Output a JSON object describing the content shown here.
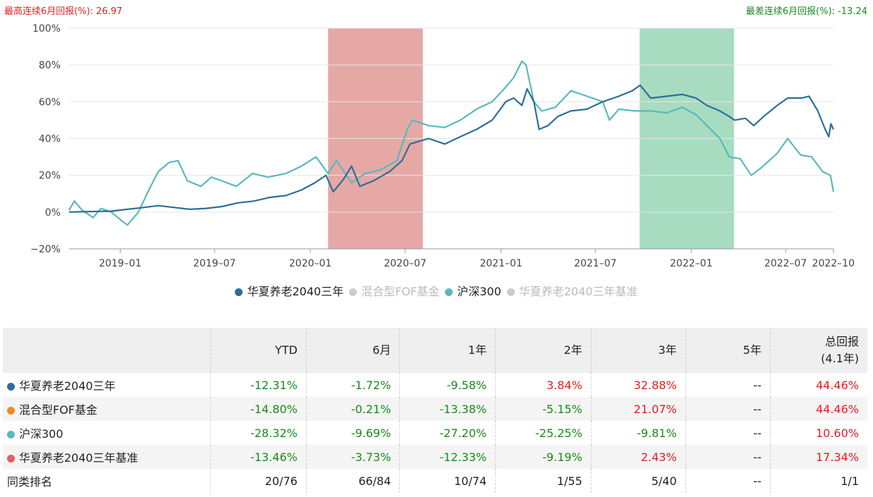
{
  "header": {
    "best_label": "最高连续6月回报(%):",
    "best_value": "26.97",
    "worst_label": "最差连续6月回报(%):",
    "worst_value": "-13.24"
  },
  "chart_data": {
    "type": "line",
    "title": "",
    "xlabel": "",
    "ylabel": "",
    "ylim": [
      -20,
      100
    ],
    "yticks": [
      "100%",
      "80%",
      "60%",
      "40%",
      "20%",
      "0%",
      "−20%"
    ],
    "xticks": [
      "2019–01",
      "2019–07",
      "2020–01",
      "2020–07",
      "2021–01",
      "2021–07",
      "2022–01",
      "2022–07",
      "2022–10"
    ],
    "xtick_dates": [
      "2019-01-01",
      "2019-07-01",
      "2020-01-01",
      "2020-07-01",
      "2021-01-01",
      "2021-07-01",
      "2022-01-01",
      "2022-07-01",
      "2022-10-01"
    ],
    "xrange": [
      "2018-09-25",
      "2022-10-01"
    ],
    "highlights": [
      {
        "kind": "best",
        "start": "2020-02-04",
        "end": "2020-08-04",
        "color": "#e6a8a5"
      },
      {
        "kind": "worst",
        "start": "2021-09-24",
        "end": "2022-03-24",
        "color": "#a8dcc0"
      }
    ],
    "grid": true,
    "legend_position": "bottom",
    "series": [
      {
        "name": "华夏养老2040三年",
        "color": "#2b6f9b",
        "enabled": true,
        "points": [
          [
            "2018-09-25",
            0
          ],
          [
            "2018-11-01",
            0.3
          ],
          [
            "2018-12-15",
            0.5
          ],
          [
            "2019-01-15",
            1.5
          ],
          [
            "2019-02-15",
            2.5
          ],
          [
            "2019-03-15",
            3.5
          ],
          [
            "2019-04-15",
            2.5
          ],
          [
            "2019-05-15",
            1.5
          ],
          [
            "2019-06-15",
            2
          ],
          [
            "2019-07-15",
            3
          ],
          [
            "2019-08-15",
            5
          ],
          [
            "2019-09-15",
            6
          ],
          [
            "2019-10-15",
            8
          ],
          [
            "2019-11-15",
            9
          ],
          [
            "2019-12-15",
            12
          ],
          [
            "2020-01-10",
            16
          ],
          [
            "2020-01-31",
            20
          ],
          [
            "2020-02-14",
            11
          ],
          [
            "2020-03-05",
            18
          ],
          [
            "2020-03-20",
            25
          ],
          [
            "2020-04-05",
            14
          ],
          [
            "2020-05-01",
            17
          ],
          [
            "2020-06-01",
            22
          ],
          [
            "2020-06-25",
            28
          ],
          [
            "2020-07-10",
            37
          ],
          [
            "2020-08-15",
            40
          ],
          [
            "2020-09-15",
            37
          ],
          [
            "2020-10-15",
            41
          ],
          [
            "2020-11-15",
            45
          ],
          [
            "2020-12-15",
            50
          ],
          [
            "2021-01-10",
            60
          ],
          [
            "2021-01-25",
            62
          ],
          [
            "2021-02-10",
            58
          ],
          [
            "2021-02-20",
            67
          ],
          [
            "2021-03-05",
            60
          ],
          [
            "2021-03-15",
            45
          ],
          [
            "2021-04-01",
            47
          ],
          [
            "2021-04-20",
            52
          ],
          [
            "2021-05-15",
            55
          ],
          [
            "2021-06-15",
            56
          ],
          [
            "2021-07-15",
            60
          ],
          [
            "2021-08-15",
            63
          ],
          [
            "2021-09-10",
            66
          ],
          [
            "2021-09-25",
            69
          ],
          [
            "2021-10-15",
            62
          ],
          [
            "2021-11-15",
            63
          ],
          [
            "2021-12-15",
            64
          ],
          [
            "2022-01-10",
            62
          ],
          [
            "2022-01-31",
            58
          ],
          [
            "2022-02-25",
            55
          ],
          [
            "2022-03-15",
            52
          ],
          [
            "2022-03-25",
            50
          ],
          [
            "2022-04-15",
            51
          ],
          [
            "2022-05-01",
            47
          ],
          [
            "2022-05-20",
            52
          ],
          [
            "2022-06-15",
            58
          ],
          [
            "2022-07-05",
            62
          ],
          [
            "2022-08-01",
            62
          ],
          [
            "2022-08-15",
            63
          ],
          [
            "2022-09-01",
            55
          ],
          [
            "2022-09-15",
            45
          ],
          [
            "2022-09-22",
            41
          ],
          [
            "2022-09-26",
            48
          ],
          [
            "2022-10-01",
            45
          ]
        ]
      },
      {
        "name": "混合型FOF基金",
        "color": "#f08a24",
        "enabled": false,
        "points": []
      },
      {
        "name": "沪深300",
        "color": "#5ab8bd",
        "enabled": true,
        "points": [
          [
            "2018-09-25",
            1
          ],
          [
            "2018-10-05",
            6
          ],
          [
            "2018-10-20",
            1
          ],
          [
            "2018-11-10",
            -3
          ],
          [
            "2018-11-25",
            2
          ],
          [
            "2018-12-15",
            0
          ],
          [
            "2019-01-05",
            -5
          ],
          [
            "2019-01-15",
            -7
          ],
          [
            "2019-02-05",
            0
          ],
          [
            "2019-02-25",
            12
          ],
          [
            "2019-03-15",
            22
          ],
          [
            "2019-04-05",
            27
          ],
          [
            "2019-04-22",
            28
          ],
          [
            "2019-05-10",
            17
          ],
          [
            "2019-06-05",
            14
          ],
          [
            "2019-06-25",
            19
          ],
          [
            "2019-07-15",
            17
          ],
          [
            "2019-08-12",
            14
          ],
          [
            "2019-09-12",
            21
          ],
          [
            "2019-10-12",
            19
          ],
          [
            "2019-11-15",
            21
          ],
          [
            "2019-12-15",
            25
          ],
          [
            "2020-01-12",
            30
          ],
          [
            "2020-02-04",
            21
          ],
          [
            "2020-02-20",
            28
          ],
          [
            "2020-03-20",
            16
          ],
          [
            "2020-04-15",
            21
          ],
          [
            "2020-05-15",
            23
          ],
          [
            "2020-06-15",
            28
          ],
          [
            "2020-07-05",
            45
          ],
          [
            "2020-07-15",
            50
          ],
          [
            "2020-08-15",
            47
          ],
          [
            "2020-09-15",
            46
          ],
          [
            "2020-10-15",
            50
          ],
          [
            "2020-11-15",
            56
          ],
          [
            "2020-12-15",
            60
          ],
          [
            "2021-01-10",
            68
          ],
          [
            "2021-01-25",
            73
          ],
          [
            "2021-02-10",
            82
          ],
          [
            "2021-02-18",
            80
          ],
          [
            "2021-03-05",
            60
          ],
          [
            "2021-03-20",
            55
          ],
          [
            "2021-04-15",
            57
          ],
          [
            "2021-05-15",
            66
          ],
          [
            "2021-06-15",
            63
          ],
          [
            "2021-07-15",
            60
          ],
          [
            "2021-07-28",
            50
          ],
          [
            "2021-08-15",
            56
          ],
          [
            "2021-09-15",
            55
          ],
          [
            "2021-10-15",
            55
          ],
          [
            "2021-11-15",
            54
          ],
          [
            "2021-12-15",
            57
          ],
          [
            "2022-01-10",
            53
          ],
          [
            "2022-01-31",
            47
          ],
          [
            "2022-02-25",
            40
          ],
          [
            "2022-03-15",
            30
          ],
          [
            "2022-04-05",
            29
          ],
          [
            "2022-04-26",
            20
          ],
          [
            "2022-05-15",
            24
          ],
          [
            "2022-06-15",
            32
          ],
          [
            "2022-07-05",
            40
          ],
          [
            "2022-07-30",
            31
          ],
          [
            "2022-08-20",
            30
          ],
          [
            "2022-09-10",
            22
          ],
          [
            "2022-09-25",
            20
          ],
          [
            "2022-10-01",
            11
          ]
        ]
      },
      {
        "name": "华夏养老2040三年基准",
        "color": "#e06060",
        "enabled": false,
        "points": []
      }
    ]
  },
  "legend": [
    {
      "label": "华夏养老2040三年",
      "color": "#2b6f9b",
      "active": true
    },
    {
      "label": "混合型FOF基金",
      "color": "#cccccc",
      "active": false
    },
    {
      "label": "沪深300",
      "color": "#5ab8bd",
      "active": true
    },
    {
      "label": "华夏养老2040三年基准",
      "color": "#cccccc",
      "active": false
    }
  ],
  "table": {
    "header_line1": [
      "",
      "YTD",
      "6月",
      "1年",
      "2年",
      "3年",
      "5年",
      "总回报"
    ],
    "header_line2": [
      "",
      "",
      "",
      "",
      "",
      "",
      "",
      "(4.1年)"
    ],
    "rows": [
      {
        "name": "华夏养老2040三年",
        "dot": "#2b6f9b",
        "values": [
          "-12.31%",
          "-1.72%",
          "-9.58%",
          "3.84%",
          "32.88%",
          "--",
          "44.46%"
        ]
      },
      {
        "name": "混合型FOF基金",
        "dot": "#f08a24",
        "values": [
          "-14.80%",
          "-0.21%",
          "-13.38%",
          "-5.15%",
          "21.07%",
          "--",
          "44.46%"
        ]
      },
      {
        "name": "沪深300",
        "dot": "#5ab8bd",
        "values": [
          "-28.32%",
          "-9.69%",
          "-27.20%",
          "-25.25%",
          "-9.81%",
          "--",
          "10.60%"
        ]
      },
      {
        "name": "华夏养老2040三年基准",
        "dot": "#e06060",
        "values": [
          "-13.46%",
          "-3.73%",
          "-12.33%",
          "-9.19%",
          "2.43%",
          "--",
          "17.34%"
        ]
      },
      {
        "name": "同类排名",
        "dot": "",
        "values": [
          "20/76",
          "66/84",
          "10/74",
          "1/55",
          "5/40",
          "--",
          "1/1"
        ]
      }
    ]
  }
}
